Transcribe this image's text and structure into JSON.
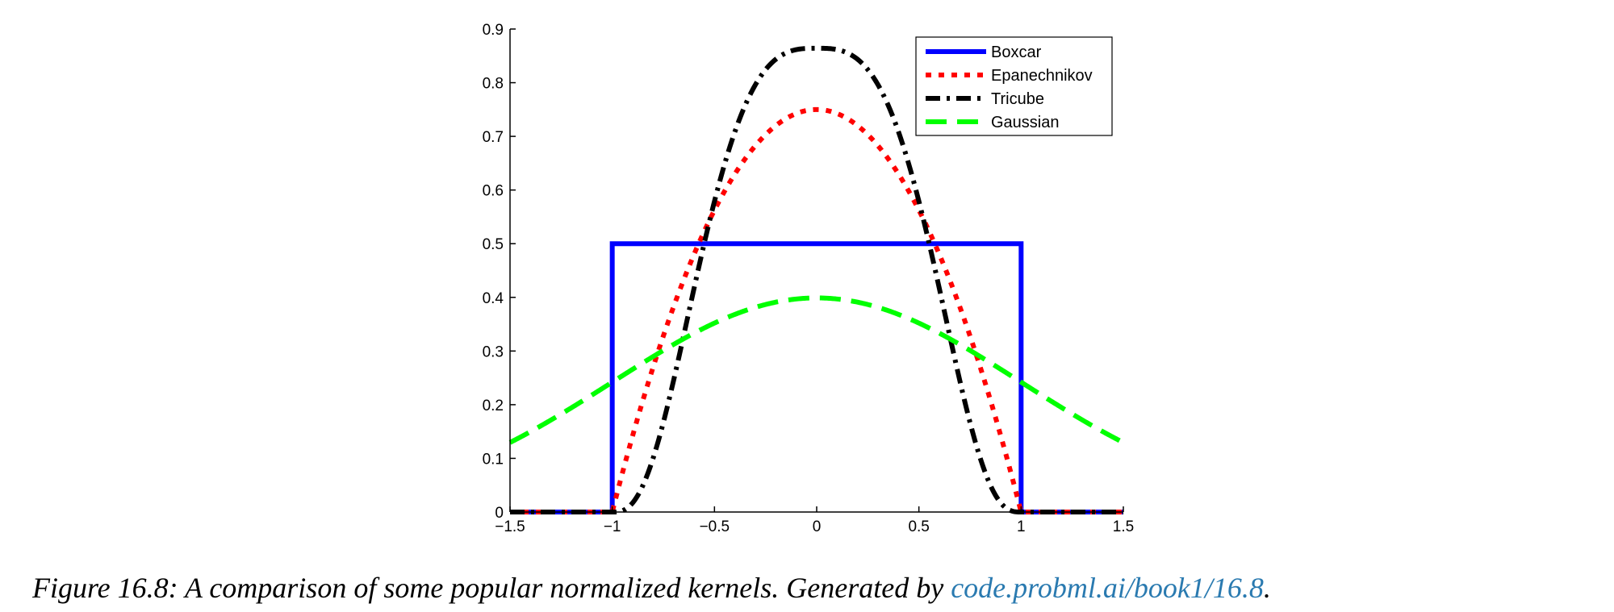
{
  "chart_data": {
    "type": "line",
    "xlim": [
      -1.5,
      1.5
    ],
    "ylim": [
      0,
      0.9
    ],
    "xticks": [
      -1.5,
      -1,
      -0.5,
      0,
      0.5,
      1,
      1.5
    ],
    "xtick_labels": [
      "−1.5",
      "−1",
      "−0.5",
      "0",
      "0.5",
      "1",
      "1.5"
    ],
    "yticks": [
      0,
      0.1,
      0.2,
      0.3,
      0.4,
      0.5,
      0.6,
      0.7,
      0.8,
      0.9
    ],
    "ytick_labels": [
      "0",
      "0.1",
      "0.2",
      "0.3",
      "0.4",
      "0.5",
      "0.6",
      "0.7",
      "0.8",
      "0.9"
    ],
    "legend_position": "top-right",
    "grid": false,
    "x": [
      -1.5,
      -1.25,
      -1.0,
      -0.9,
      -0.75,
      -0.6,
      -0.5,
      -0.25,
      0,
      0.25,
      0.5,
      0.6,
      0.75,
      0.9,
      1.0,
      1.25,
      1.5
    ],
    "series": [
      {
        "name": "Boxcar",
        "color": "#0000ff",
        "style": "solid",
        "values": [
          0,
          0,
          0.5,
          0.5,
          0.5,
          0.5,
          0.5,
          0.5,
          0.5,
          0.5,
          0.5,
          0.5,
          0.5,
          0.5,
          0.5,
          0,
          0
        ]
      },
      {
        "name": "Epanechnikov",
        "color": "#ff0000",
        "style": "dotted",
        "values": [
          0,
          0,
          0,
          0.1425,
          0.328,
          0.48,
          0.5625,
          0.703,
          0.75,
          0.703,
          0.5625,
          0.48,
          0.328,
          0.1425,
          0,
          0,
          0
        ]
      },
      {
        "name": "Tricube",
        "color": "#000000",
        "style": "dashdot",
        "values": [
          0,
          0,
          0,
          0.0013,
          0.146,
          0.406,
          0.58,
          0.817,
          0.864,
          0.817,
          0.58,
          0.406,
          0.146,
          0.0013,
          0,
          0,
          0
        ]
      },
      {
        "name": "Gaussian",
        "color": "#00ff00",
        "style": "dashed",
        "values": [
          0.1295,
          0.1826,
          0.242,
          0.2661,
          0.3011,
          0.3332,
          0.3521,
          0.3867,
          0.3989,
          0.3867,
          0.3521,
          0.3332,
          0.3011,
          0.2661,
          0.242,
          0.1826,
          0.1295
        ]
      }
    ]
  },
  "caption": {
    "text": "Figure 16.8: A comparison of some popular normalized kernels. Generated by ",
    "link": "code.probml.ai/book1/16.8",
    "end": "."
  }
}
